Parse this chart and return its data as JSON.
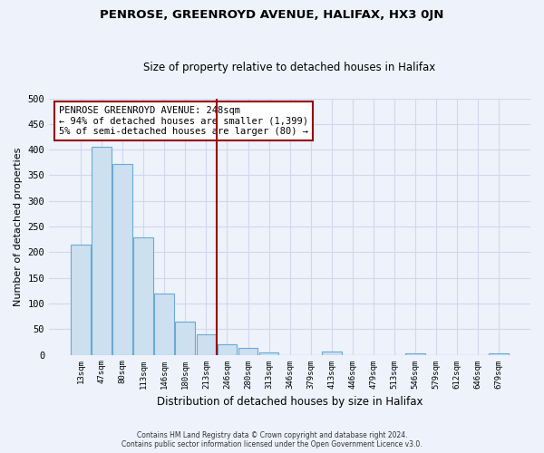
{
  "title": "PENROSE, GREENROYD AVENUE, HALIFAX, HX3 0JN",
  "subtitle": "Size of property relative to detached houses in Halifax",
  "xlabel": "Distribution of detached houses by size in Halifax",
  "ylabel": "Number of detached properties",
  "bar_labels": [
    "13sqm",
    "47sqm",
    "80sqm",
    "113sqm",
    "146sqm",
    "180sqm",
    "213sqm",
    "246sqm",
    "280sqm",
    "313sqm",
    "346sqm",
    "379sqm",
    "413sqm",
    "446sqm",
    "479sqm",
    "513sqm",
    "546sqm",
    "579sqm",
    "612sqm",
    "646sqm",
    "679sqm"
  ],
  "bar_values": [
    214,
    405,
    372,
    229,
    119,
    65,
    40,
    20,
    14,
    5,
    0,
    0,
    7,
    0,
    0,
    0,
    3,
    0,
    0,
    0,
    2
  ],
  "bar_color": "#cce0f0",
  "bar_edge_color": "#6aaad4",
  "vline_x": 6.5,
  "vline_color": "#990000",
  "annotation_title": "PENROSE GREENROYD AVENUE: 248sqm",
  "annotation_line1": "← 94% of detached houses are smaller (1,399)",
  "annotation_line2": "5% of semi-detached houses are larger (80) →",
  "annotation_box_color": "#ffffff",
  "annotation_box_edge": "#990000",
  "ylim": [
    0,
    500
  ],
  "yticks": [
    0,
    50,
    100,
    150,
    200,
    250,
    300,
    350,
    400,
    450,
    500
  ],
  "footer1": "Contains HM Land Registry data © Crown copyright and database right 2024.",
  "footer2": "Contains public sector information licensed under the Open Government Licence v3.0.",
  "background_color": "#edf2fb",
  "grid_color": "#d0d8ee"
}
